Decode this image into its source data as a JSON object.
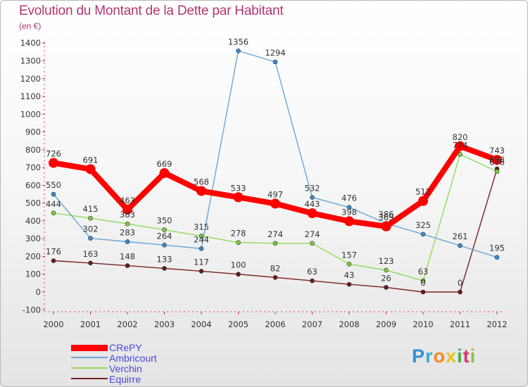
{
  "title": "Evolution du Montant de la Dette par Habitant",
  "subtitle": "(en €)",
  "logo": {
    "letters": [
      "P",
      "r",
      "o",
      "x",
      "i",
      "t",
      "i"
    ],
    "colors": [
      "#2f8fd8",
      "#3aaae0",
      "#f08a1c",
      "#e8c21a",
      "#3cb04a",
      "#d6336c",
      "#8fc23f"
    ]
  },
  "chart_data": {
    "type": "line",
    "title": "Evolution du Montant de la Dette par Habitant",
    "ylabel": "(en €)",
    "x": [
      "2000",
      "2001",
      "2002",
      "2003",
      "2004",
      "2005",
      "2006",
      "2007",
      "2008",
      "2009",
      "2010",
      "2011",
      "2012"
    ],
    "ylim": [
      -100,
      1400
    ],
    "yticks": [
      "-100",
      "0",
      "100",
      "200",
      "300",
      "400",
      "500",
      "600",
      "700",
      "800",
      "900",
      "1000",
      "1100",
      "1200",
      "1300",
      "1400"
    ],
    "grid": false,
    "legend_position": "bottom-left",
    "series": [
      {
        "name": "Equirre",
        "color": "#7a2020",
        "marker": "#6a1a1a",
        "values": [
          176,
          163,
          148,
          133,
          117,
          100,
          82,
          63,
          43,
          26,
          0,
          0,
          693
        ],
        "labels": [
          "176",
          "163",
          "148",
          "133",
          "117",
          "100",
          "82",
          "63",
          "43",
          "26",
          "0",
          "0",
          "693"
        ]
      },
      {
        "name": "Verchin",
        "color": "#8fdc5a",
        "marker": "#7acc3c",
        "values": [
          444,
          415,
          383,
          350,
          315,
          278,
          274,
          274,
          157,
          123,
          63,
          774,
          678
        ],
        "labels": [
          "444",
          "415",
          "383",
          "350",
          "315",
          "278",
          "274",
          "274",
          "157",
          "123",
          "63",
          "774",
          "678"
        ]
      },
      {
        "name": "Ambricourt",
        "color": "#6aa6d6",
        "marker": "#3a8ad0",
        "values": [
          550,
          302,
          283,
          264,
          244,
          1356,
          1294,
          532,
          476,
          386,
          325,
          261,
          195
        ],
        "labels": [
          "550",
          "302",
          "283",
          "264",
          "244",
          "1356",
          "1294",
          "532",
          "476",
          "386",
          "325",
          "261",
          "195"
        ]
      },
      {
        "name": "CRePY",
        "color": "#ff0000",
        "marker": "#ff0000",
        "values": [
          726,
          691,
          463,
          669,
          568,
          533,
          497,
          443,
          398,
          369,
          512,
          820,
          743
        ],
        "labels": [
          "726",
          "691",
          "463",
          "669",
          "568",
          "533",
          "497",
          "443",
          "398",
          "369",
          "512",
          "820",
          "743"
        ]
      }
    ]
  }
}
